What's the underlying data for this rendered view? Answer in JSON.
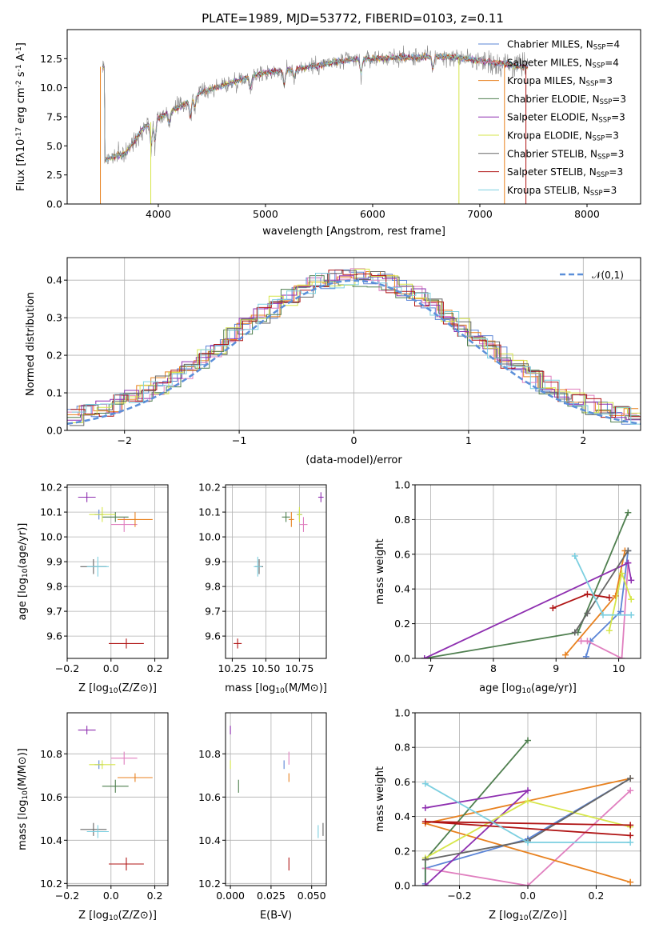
{
  "title": "PLATE=1989, MJD=53772, FIBERID=0103, z=0.11",
  "colors": {
    "Chabrier MILES": "#5b84d6",
    "Salpeter MILES": "#e07fbf",
    "Kroupa MILES": "#e8811f",
    "Chabrier ELODIE": "#4f7f4f",
    "Salpeter ELODIE": "#8e2fb0",
    "Kroupa ELODIE": "#d6e64a",
    "Chabrier STELIB": "#666666",
    "Salpeter STELIB": "#b01515",
    "Kroupa STELIB": "#7ccfe0"
  },
  "chart_data": [
    {
      "id": "spectrum",
      "type": "line",
      "title": "PLATE=1989, MJD=53772, FIBERID=0103, z=0.11",
      "xlabel": "wavelength [Angstrom, rest frame]",
      "ylabel": "Flux [f$_\\lambda$10$^{-17}$ erg cm$^{-2}$ s$^{-1}$ A$^{-1}$]",
      "xlim": [
        3150,
        8500
      ],
      "ylim": [
        0,
        15
      ],
      "xticks": [
        4000,
        5000,
        6000,
        7000,
        8000
      ],
      "yticks": [
        0.0,
        2.5,
        5.0,
        7.5,
        10.0,
        12.5
      ],
      "grid": false,
      "legend": "right",
      "continuum": [
        [
          3500,
          3.8
        ],
        [
          3700,
          4.4
        ],
        [
          3850,
          6.4
        ],
        [
          3950,
          7.2
        ],
        [
          4100,
          7.9
        ],
        [
          4250,
          8.6
        ],
        [
          4400,
          9.6
        ],
        [
          4600,
          10.2
        ],
        [
          4800,
          10.8
        ],
        [
          5000,
          11.3
        ],
        [
          5200,
          11.5
        ],
        [
          5400,
          11.8
        ],
        [
          5600,
          12.1
        ],
        [
          5800,
          12.4
        ],
        [
          6000,
          12.5
        ],
        [
          6200,
          12.6
        ],
        [
          6400,
          12.6
        ],
        [
          6600,
          12.7
        ],
        [
          6800,
          12.6
        ],
        [
          7000,
          12.3
        ],
        [
          7200,
          12.1
        ],
        [
          7400,
          11.8
        ]
      ],
      "series": [
        {
          "label": "Chabrier MILES, N$_{SSP}$=4"
        },
        {
          "label": "Salpeter MILES, N$_{SSP}$=4"
        },
        {
          "label": "Kroupa MILES, N$_{SSP}$=3"
        },
        {
          "label": "Chabrier ELODIE, N$_{SSP}$=3"
        },
        {
          "label": "Salpeter ELODIE, N$_{SSP}$=3"
        },
        {
          "label": "Kroupa ELODIE, N$_{SSP}$=3"
        },
        {
          "label": "Chabrier STELIB, N$_{SSP}$=3"
        },
        {
          "label": "Salpeter STELIB, N$_{SSP}$=3"
        },
        {
          "label": "Kroupa STELIB, N$_{SSP}$=3"
        }
      ]
    },
    {
      "id": "residuals",
      "type": "line",
      "xlabel": "(data-model)/error",
      "ylabel": "Normed distribution",
      "xlim": [
        -2.5,
        2.5
      ],
      "ylim": [
        0,
        0.46
      ],
      "xticks": [
        -2,
        -1,
        0,
        1,
        2
      ],
      "yticks": [
        0.0,
        0.1,
        0.2,
        0.3,
        0.4
      ],
      "grid": true,
      "legend": "top-right",
      "reference_label": "$\\mathcal{N}(0,1)$",
      "hist_bins": 40
    },
    {
      "id": "age-vs-Z",
      "type": "scatter",
      "xlabel": "Z [log$_{10}$(Z/Z$_\\odot$)]",
      "ylabel": "age  [log$_{10}$(age/yr)]",
      "xlim": [
        -0.2,
        0.26
      ],
      "ylim": [
        9.51,
        10.21
      ],
      "xticks": [
        -0.2,
        0.0,
        0.2
      ],
      "yticks": [
        9.6,
        9.7,
        9.8,
        9.9,
        10.0,
        10.1,
        10.2
      ],
      "grid": true
    },
    {
      "id": "age-vs-mass",
      "type": "scatter",
      "xlabel": "mass [log$_{10}$(M/M$_\\odot$)]",
      "xlim": [
        10.2,
        10.95
      ],
      "ylim": [
        9.51,
        10.21
      ],
      "xticks": [
        10.25,
        10.5,
        10.75
      ],
      "yticks": [
        9.6,
        9.7,
        9.8,
        9.9,
        10.0,
        10.1,
        10.2
      ],
      "grid": true
    },
    {
      "id": "weight-vs-age",
      "type": "line",
      "xlabel": "age  [log$_{10}$(age/yr)]",
      "ylabel": "mass weight",
      "xlim": [
        6.75,
        10.35
      ],
      "ylim": [
        0,
        1
      ],
      "xticks": [
        7,
        8,
        9,
        10
      ],
      "yticks": [
        0.0,
        0.2,
        0.4,
        0.6,
        0.8,
        1.0
      ],
      "grid": true
    },
    {
      "id": "mass-vs-Z",
      "type": "scatter",
      "xlabel": "Z [log$_{10}$(Z/Z$_\\odot$)]",
      "ylabel": "mass [log$_{10}$(M/M$_\\odot$)]",
      "xlim": [
        -0.2,
        0.26
      ],
      "ylim": [
        10.19,
        10.99
      ],
      "xticks": [
        -0.2,
        0.0,
        0.2
      ],
      "yticks": [
        10.2,
        10.4,
        10.6,
        10.8
      ],
      "grid": true
    },
    {
      "id": "mass-vs-EBV",
      "type": "scatter",
      "xlabel": "E(B-V)",
      "xlim": [
        -0.003,
        0.059
      ],
      "ylim": [
        10.19,
        10.99
      ],
      "xticks": [
        0.0,
        0.025,
        0.05
      ],
      "yticks": [
        10.2,
        10.4,
        10.6,
        10.8
      ],
      "grid": true
    },
    {
      "id": "weight-vs-Z",
      "type": "line",
      "xlabel": "Z [log$_{10}$(Z/Z$_\\odot$)]",
      "ylabel": "mass weight",
      "xlim": [
        -0.33,
        0.33
      ],
      "ylim": [
        0,
        1
      ],
      "xticks": [
        -0.2,
        0.0,
        0.2
      ],
      "yticks": [
        0.0,
        0.2,
        0.4,
        0.6,
        0.8,
        1.0
      ],
      "grid": true
    }
  ],
  "models": [
    {
      "name": "Chabrier MILES",
      "Z": -0.055,
      "Zerr": 0.02,
      "age": 10.09,
      "ageErr": 0.02,
      "mass": 10.75,
      "massErr": 0.02,
      "ebv": 0.033,
      "ebvErr": 0.0,
      "ssp": [
        [
          9.48,
          -0.3,
          0.01
        ],
        [
          9.55,
          -0.3,
          0.1
        ],
        [
          10.03,
          0.0,
          0.27
        ],
        [
          10.15,
          0.3,
          0.62
        ]
      ]
    },
    {
      "name": "Salpeter MILES",
      "Z": 0.06,
      "Zerr": 0.06,
      "age": 10.05,
      "ageErr": 0.03,
      "mass": 10.78,
      "massErr": 0.03,
      "ebv": 0.036,
      "ebvErr": 0.0,
      "ssp": [
        [
          9.4,
          -0.3,
          0.1
        ],
        [
          9.5,
          -0.3,
          0.1
        ],
        [
          10.05,
          0.0,
          0.0
        ],
        [
          10.15,
          0.3,
          0.55
        ]
      ]
    },
    {
      "name": "Kroupa MILES",
      "Z": 0.11,
      "Zerr": 0.08,
      "age": 10.07,
      "ageErr": 0.03,
      "mass": 10.69,
      "massErr": 0.02,
      "ebv": 0.036,
      "ebvErr": 0.0,
      "ssp": [
        [
          9.15,
          0.3,
          0.02
        ],
        [
          9.95,
          -0.3,
          0.36
        ],
        [
          10.1,
          0.3,
          0.62
        ]
      ]
    },
    {
      "name": "Chabrier ELODIE",
      "Z": 0.02,
      "Zerr": 0.06,
      "age": 10.08,
      "ageErr": 0.02,
      "mass": 10.65,
      "massErr": 0.03,
      "ebv": 0.005,
      "ebvErr": 0.0,
      "ssp": [
        [
          6.9,
          -0.3,
          0.0
        ],
        [
          9.35,
          -0.3,
          0.15
        ],
        [
          10.15,
          0.0,
          0.84
        ]
      ]
    },
    {
      "name": "Salpeter ELODIE",
      "Z": -0.11,
      "Zerr": 0.04,
      "age": 10.16,
      "ageErr": 0.02,
      "mass": 10.91,
      "massErr": 0.02,
      "ebv": 0.0,
      "ebvErr": 0.0,
      "ssp": [
        [
          6.9,
          -0.3,
          0.0
        ],
        [
          10.15,
          0.0,
          0.55
        ],
        [
          10.2,
          -0.3,
          0.45
        ]
      ]
    },
    {
      "name": "Kroupa ELODIE",
      "Z": -0.04,
      "Zerr": 0.06,
      "age": 10.09,
      "ageErr": 0.03,
      "mass": 10.75,
      "massErr": 0.02,
      "ebv": 0.0,
      "ebvErr": 0.0,
      "ssp": [
        [
          9.85,
          -0.3,
          0.16
        ],
        [
          10.05,
          0.0,
          0.49
        ],
        [
          10.2,
          0.3,
          0.34
        ]
      ]
    },
    {
      "name": "Chabrier STELIB",
      "Z": -0.08,
      "Zerr": 0.06,
      "age": 9.88,
      "ageErr": 0.03,
      "mass": 10.45,
      "massErr": 0.03,
      "ebv": 0.057,
      "ebvErr": 0.0,
      "ssp": [
        [
          9.3,
          -0.3,
          0.15
        ],
        [
          9.5,
          0.0,
          0.26
        ],
        [
          10.15,
          0.3,
          0.62
        ]
      ]
    },
    {
      "name": "Salpeter STELIB",
      "Z": 0.07,
      "Zerr": 0.08,
      "age": 9.57,
      "ageErr": 0.02,
      "mass": 10.29,
      "massErr": 0.03,
      "ebv": 0.036,
      "ebvErr": 0.0,
      "ssp": [
        [
          8.95,
          0.3,
          0.29
        ],
        [
          9.5,
          -0.3,
          0.37
        ],
        [
          9.85,
          0.3,
          0.35
        ]
      ]
    },
    {
      "name": "Kroupa STELIB",
      "Z": -0.06,
      "Zerr": 0.05,
      "age": 9.88,
      "ageErr": 0.04,
      "mass": 10.44,
      "massErr": 0.03,
      "ebv": 0.054,
      "ebvErr": 0.0,
      "ssp": [
        [
          9.3,
          -0.3,
          0.59
        ],
        [
          9.75,
          0.0,
          0.25
        ],
        [
          10.2,
          0.3,
          0.25
        ]
      ]
    }
  ]
}
